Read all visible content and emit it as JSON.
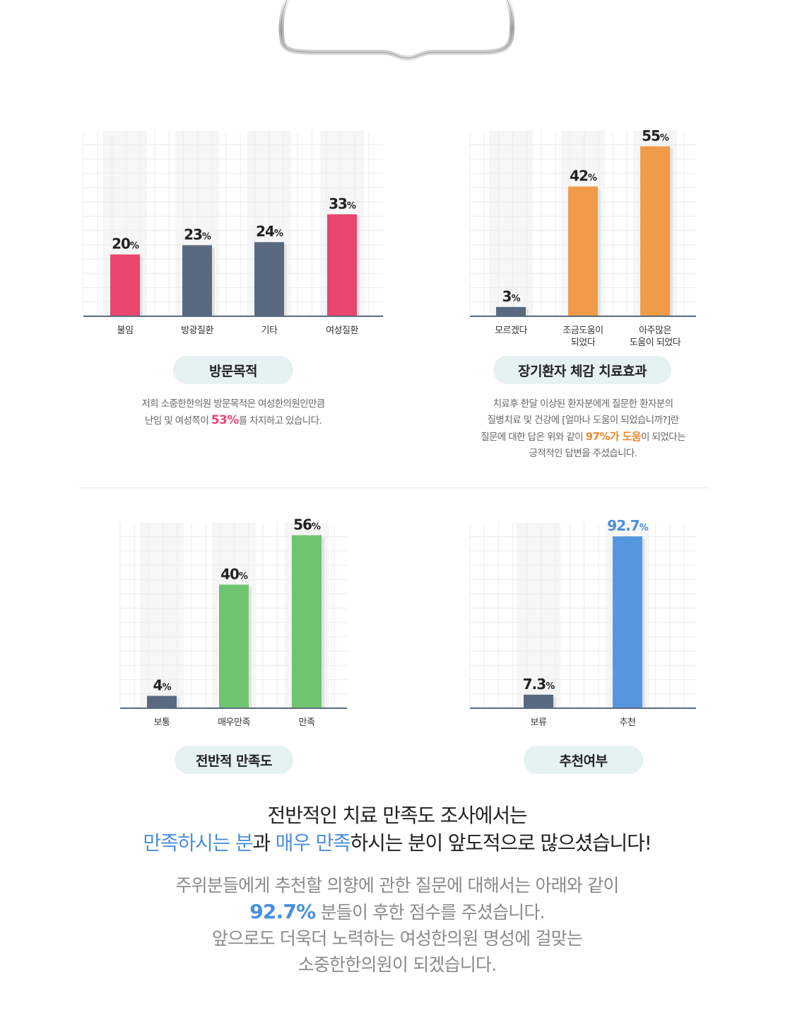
{
  "colors": {
    "pink": "#e8456f",
    "slate": "#596a80",
    "orange": "#f09b47",
    "green": "#6fc56f",
    "blue": "#5597df",
    "pill_bg": "#e6f1f1"
  },
  "decor": {
    "clipboard_clip": "clipboard-clip-icon"
  },
  "chart_data": [
    {
      "type": "bar",
      "categories": [
        "불임",
        "방광질환",
        "기타",
        "여성질환"
      ],
      "values": [
        20,
        23,
        24,
        33
      ],
      "value_labels": [
        "20",
        "23",
        "24",
        "33"
      ],
      "unit": "%",
      "colors": [
        "pink",
        "slate",
        "slate",
        "pink"
      ],
      "ylim": [
        0,
        60
      ],
      "grid": true,
      "title": "방문목적"
    },
    {
      "type": "bar",
      "categories": [
        [
          "모르겠다"
        ],
        [
          "조금도움이",
          "되었다"
        ],
        [
          "아주많은",
          "도움이 되었다"
        ]
      ],
      "values": [
        3,
        42,
        55
      ],
      "value_labels": [
        "3",
        "42",
        "55"
      ],
      "unit": "%",
      "colors": [
        "slate",
        "orange",
        "orange"
      ],
      "ylim": [
        0,
        60
      ],
      "grid": true,
      "title": "장기환자 체감 치료효과"
    },
    {
      "type": "bar",
      "categories": [
        "보통",
        "매우만족",
        "만족"
      ],
      "values": [
        4,
        40,
        56
      ],
      "value_labels": [
        "4",
        "40",
        "56"
      ],
      "unit": "%",
      "colors": [
        "slate",
        "green",
        "green"
      ],
      "ylim": [
        0,
        60
      ],
      "grid": true,
      "title": "전반적 만족도"
    },
    {
      "type": "bar",
      "categories": [
        "보류",
        "추천"
      ],
      "values": [
        7.3,
        92.7
      ],
      "value_labels": [
        "7.3",
        "92.7"
      ],
      "unit": "%",
      "colors": [
        "slate",
        "blue"
      ],
      "label_colors": [
        "#222",
        "#4a8fdc"
      ],
      "ylim": [
        0,
        100
      ],
      "grid": true,
      "title": "추천여부"
    }
  ],
  "panels": {
    "visit": {
      "desc1": "저희 소중한한의원 방문목적은 여성한의원인만큼",
      "desc2_pre": "난임 및 여성쪽이 ",
      "desc2_hl": "53%",
      "desc2_post": "를 차지하고 있습니다."
    },
    "effect": {
      "desc1": "치료후 한달 이상된 환자분에게 질문한 환자분의",
      "desc2": "질병치료 및 건강에 [얼마나 도움이 되었습니까?]란",
      "desc3_pre": "질문에 대한 답은  위와 같이 ",
      "desc3_hl": "97%가 도움",
      "desc3_post": "이 되었다는",
      "desc4": "긍적적인 답변을 주셨습니다."
    }
  },
  "summary": {
    "line1": "전반적인 치료 만족도 조사에서는",
    "line2_hl1": "만족하시는 분",
    "line2_mid": "과 ",
    "line2_hl2": "매우 만족",
    "line2_post": "하시는 분이 앞도적으로 많으셨습니다!",
    "sub1": "주위분들에게 추천할 의향에 관한 질문에 대해서는 아래와 같이",
    "sub2_num": "92.7%",
    "sub2_post": " 분들이 후한 점수를 주셨습니다.",
    "sub3": "앞으로도 더욱더 노력하는 여성한의원 명성에 걸맞는",
    "sub4": "소중한한의원이 되겠습니다."
  }
}
